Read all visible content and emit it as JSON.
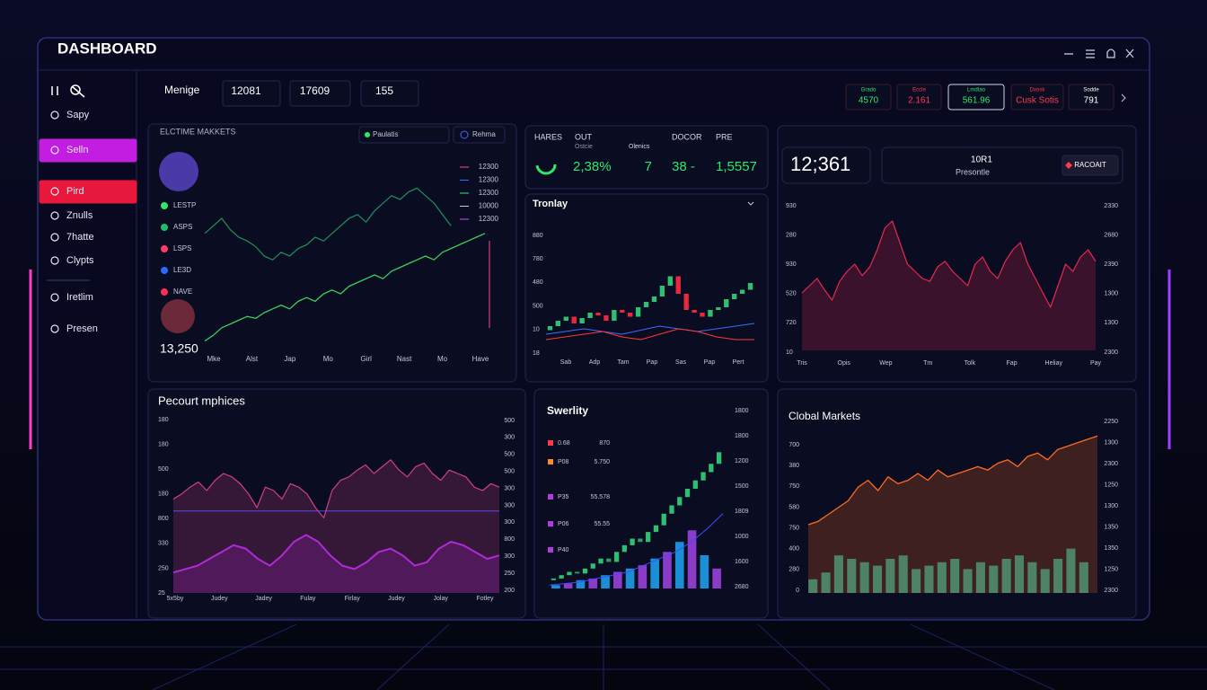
{
  "header": {
    "title": "DASHBOARD"
  },
  "sidebar": {
    "items": [
      {
        "label": "Sapy"
      },
      {
        "label": "Selln",
        "color": "#c21de0"
      },
      {
        "label": "Pird",
        "color": "#e8173c"
      },
      {
        "label": "Znulls"
      },
      {
        "label": "7hatte"
      },
      {
        "label": "Clypts"
      },
      {
        "label": "Iretlim"
      },
      {
        "label": "Presen"
      }
    ]
  },
  "topbar": {
    "label": "Menige",
    "stats": [
      "12081",
      "17609",
      "155"
    ],
    "tickers": [
      {
        "label": "Grado",
        "value": "4570",
        "color": "#2ee86a"
      },
      {
        "label": "Eccle",
        "value": "2.161",
        "color": "#ff3b4e"
      },
      {
        "label": "Lmdtao",
        "value": "561.96",
        "color": "#2ee86a"
      },
      {
        "label": "Dxosk",
        "value": "Cusk Sotis",
        "color": "#ff3b4e"
      },
      {
        "label": "Sodde",
        "value": "791",
        "color": "#ffffff"
      }
    ]
  },
  "panel_a": {
    "title": "ELCTIME MAKKETS",
    "buttons": [
      "Paulatis",
      "Rehma"
    ],
    "legend": [
      {
        "label": "LESTP",
        "color": "#2ee86a"
      },
      {
        "label": "ASPS",
        "color": "#1fbf6a"
      },
      {
        "label": "LSPS",
        "color": "#ff3b6a"
      },
      {
        "label": "LE3D",
        "color": "#2a6cff"
      },
      {
        "label": "NAVE",
        "color": "#ff2d55"
      }
    ],
    "right_labels": [
      {
        "label": "12300",
        "color": "#ff4d6d"
      },
      {
        "label": "12300",
        "color": "#3f6bff"
      },
      {
        "label": "12300",
        "color": "#2ee86a"
      },
      {
        "label": "10000",
        "color": "#c9cce0"
      },
      {
        "label": "12300",
        "color": "#d64dff"
      }
    ],
    "total": "13,250",
    "x_labels": [
      "Mke",
      "Alst",
      "Jap",
      "Mo",
      "Girl",
      "Nast",
      "Mo",
      "Have"
    ],
    "ylim": [
      0,
      100
    ],
    "series": [
      {
        "color": "#1f8a55",
        "values": [
          62,
          66,
          70,
          64,
          60,
          58,
          55,
          50,
          48,
          52,
          50,
          54,
          56,
          60,
          58,
          62,
          66,
          70,
          72,
          68,
          74,
          78,
          82,
          80,
          84,
          86,
          82,
          78,
          72,
          66,
          null,
          null,
          null,
          null
        ]
      },
      {
        "color": "#3bd15a",
        "values": [
          5,
          8,
          12,
          14,
          16,
          18,
          17,
          20,
          22,
          24,
          22,
          26,
          28,
          26,
          30,
          32,
          30,
          34,
          36,
          38,
          40,
          38,
          42,
          44,
          46,
          48,
          50,
          48,
          52,
          54,
          56,
          58,
          60,
          62
        ]
      }
    ]
  },
  "panel_b": {
    "labels": [
      "HARES",
      "OUT",
      "Olenics",
      "DOCOR",
      "PRE"
    ],
    "sub": "Ostcie",
    "values": [
      "2,38%",
      "7",
      "38 -",
      "1,5557"
    ]
  },
  "panel_c": {
    "title": "Tronlay",
    "y_labels": [
      "880",
      "780",
      "480",
      "500",
      "10",
      "18"
    ],
    "x_labels": [
      "Sab",
      "Adp",
      "Tam",
      "Pap",
      "Sas",
      "Pap",
      "Pert"
    ],
    "ylim": [
      0,
      100
    ],
    "up_color": "#2fbf71",
    "down_color": "#e8283c",
    "candles": {
      "open": [
        15,
        18,
        22,
        25,
        20,
        24,
        28,
        26,
        22,
        30,
        28,
        25,
        32,
        36,
        40,
        48,
        55,
        42,
        30,
        28,
        25,
        30,
        32,
        38,
        42,
        45
      ],
      "close": [
        18,
        22,
        25,
        20,
        24,
        28,
        26,
        22,
        30,
        28,
        25,
        32,
        36,
        40,
        48,
        55,
        42,
        30,
        28,
        25,
        30,
        32,
        38,
        42,
        45,
        50
      ]
    },
    "lines": [
      {
        "color": "#3f6bff",
        "values": [
          12,
          14,
          16,
          14,
          12,
          15,
          18,
          16,
          14,
          16,
          18,
          20
        ]
      },
      {
        "color": "#ff3b2e",
        "values": [
          8,
          10,
          12,
          14,
          10,
          8,
          12,
          16,
          14,
          10,
          8,
          8
        ]
      }
    ]
  },
  "panel_d": {
    "big_value": "12;361",
    "value": "10R1",
    "caption": "Presontle",
    "button": "RACOAIT",
    "left_labels": [
      "930",
      "280",
      "930",
      "520",
      "720",
      "10"
    ],
    "right_labels": [
      "2330",
      "2680",
      "2390",
      "1300",
      "1300",
      "2300"
    ],
    "x_labels": [
      "Tris",
      "Opis",
      "Wep",
      "Tm",
      "Tolk",
      "Fap",
      "Heliay",
      "Pay"
    ],
    "ylim": [
      0,
      100
    ],
    "color": "#e8284e",
    "values": [
      40,
      45,
      50,
      42,
      35,
      48,
      55,
      60,
      52,
      58,
      70,
      85,
      90,
      75,
      60,
      55,
      50,
      48,
      58,
      62,
      55,
      50,
      45,
      60,
      65,
      55,
      50,
      62,
      70,
      75,
      60,
      50,
      40,
      30,
      45,
      60,
      55,
      65,
      70,
      62
    ]
  },
  "panel_e": {
    "title": "Pecourt mphices",
    "left_labels": [
      "180",
      "180",
      "500",
      "180",
      "800",
      "330",
      "250",
      "25"
    ],
    "right_labels": [
      "500",
      "300",
      "500",
      "500",
      "300",
      "300",
      "300",
      "800",
      "300",
      "250",
      "200"
    ],
    "x_labels": [
      "5x5by",
      "Judey",
      "Jadey",
      "Fulay",
      "Firlay",
      "Judey",
      "Jolay",
      "Fotley"
    ],
    "ylim": [
      0,
      100
    ],
    "line": {
      "color": "#d0408a",
      "values": [
        55,
        58,
        62,
        65,
        60,
        66,
        70,
        68,
        64,
        58,
        50,
        62,
        60,
        55,
        64,
        62,
        58,
        50,
        44,
        60,
        66,
        68,
        72,
        75,
        70,
        74,
        78,
        72,
        68,
        74,
        76,
        70,
        66,
        72,
        70,
        68,
        62,
        60,
        64,
        62
      ]
    },
    "wave": {
      "color": "#b02ad6",
      "values": [
        12,
        14,
        16,
        20,
        24,
        28,
        26,
        20,
        16,
        22,
        30,
        34,
        30,
        22,
        16,
        14,
        18,
        24,
        26,
        22,
        16,
        18,
        26,
        30,
        28,
        24,
        20,
        22
      ]
    },
    "baseline": {
      "color": "#3a4cff",
      "value": 48
    }
  },
  "panel_f": {
    "title": "Swerlity",
    "legend": [
      {
        "label": "0.68",
        "value": "870",
        "color": "#ff3b4e"
      },
      {
        "label": "P08",
        "value": "5.750",
        "color": "#ff8a2e"
      },
      {
        "label": "P35",
        "value": "55.578",
        "color": "#b13cdc"
      },
      {
        "label": "P06",
        "value": "55.55",
        "color": "#b13cdc"
      },
      {
        "label": "P40",
        "color": "#b13cdc"
      }
    ],
    "right_labels": [
      "1800",
      "1800",
      "1200",
      "1500",
      "1809",
      "1000",
      "1600",
      "2680"
    ],
    "ylim": [
      0,
      100
    ],
    "up_color": "#2fbf71",
    "down_color": "#2a9f61",
    "candles": {
      "open": [
        5,
        6,
        8,
        10,
        9,
        12,
        15,
        18,
        16,
        22,
        26,
        30,
        28,
        34,
        38,
        45,
        50,
        55,
        60,
        65,
        70,
        75
      ],
      "close": [
        6,
        8,
        10,
        9,
        12,
        15,
        18,
        16,
        22,
        26,
        30,
        28,
        34,
        38,
        45,
        50,
        55,
        60,
        65,
        70,
        75,
        82
      ]
    },
    "line": {
      "color": "#3f4cff",
      "values": [
        2,
        3,
        4,
        6,
        8,
        10,
        14,
        18,
        22,
        28,
        36,
        45
      ]
    },
    "bar_colors": [
      "#1a8fd6",
      "#8a3cc9"
    ],
    "bars": [
      2,
      3,
      5,
      6,
      8,
      10,
      12,
      14,
      18,
      22,
      28,
      35,
      20,
      12
    ]
  },
  "panel_g": {
    "title": "Clobal Markets",
    "left_labels": [
      "700",
      "380",
      "750",
      "580",
      "750",
      "400",
      "280",
      "0"
    ],
    "right_labels": [
      "2250",
      "1300",
      "2300",
      "1250",
      "1300",
      "1350",
      "1350",
      "1250",
      "2300"
    ],
    "ylim": [
      0,
      100
    ],
    "line": {
      "color": "#ff6a1f",
      "values": [
        40,
        42,
        46,
        50,
        54,
        62,
        66,
        60,
        68,
        64,
        66,
        70,
        66,
        72,
        68,
        70,
        72,
        74,
        72,
        76,
        78,
        74,
        80,
        82,
        78,
        84,
        86,
        88,
        90,
        92
      ]
    },
    "bar_color": "#1c8a7a",
    "bars": [
      8,
      12,
      22,
      20,
      18,
      16,
      20,
      22,
      14,
      16,
      18,
      20,
      14,
      18,
      16,
      20,
      22,
      18,
      14,
      20,
      26,
      18
    ]
  }
}
